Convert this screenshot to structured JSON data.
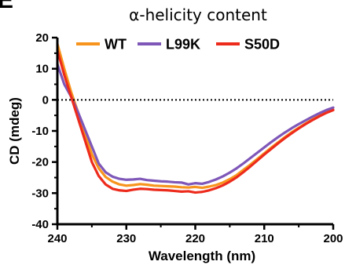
{
  "panel_letter": "E",
  "chart_data": {
    "type": "line",
    "title": "α-helicity content",
    "xlabel": "Wavelength (nm)",
    "ylabel": "CD (mdeg)",
    "xlim": [
      240,
      200
    ],
    "ylim": [
      -40,
      20
    ],
    "x_reversed": true,
    "xticks": [
      240,
      230,
      220,
      210,
      200
    ],
    "yticks": [
      -40,
      -30,
      -20,
      -10,
      0,
      10,
      20
    ],
    "reference_line": {
      "y": 0,
      "style": "dotted"
    },
    "legend_position": "top",
    "series": [
      {
        "name": "WT",
        "color": "#F7941D",
        "x": [
          240,
          239,
          238,
          237,
          236,
          235,
          234,
          233,
          232,
          231,
          230,
          229,
          228,
          227,
          226,
          225,
          224,
          223,
          222,
          221,
          220,
          219,
          218,
          217,
          216,
          215,
          214,
          213,
          212,
          211,
          210,
          209,
          208,
          207,
          206,
          205,
          204,
          203,
          202,
          201,
          200
        ],
        "values": [
          18,
          10,
          2.5,
          -4,
          -11,
          -17.5,
          -22,
          -24.8,
          -26.3,
          -27.2,
          -27.6,
          -27.4,
          -27.1,
          -27.3,
          -27.6,
          -27.7,
          -27.8,
          -27.9,
          -28.1,
          -28.2,
          -28.0,
          -28.3,
          -27.9,
          -27.4,
          -26.6,
          -25.5,
          -24.2,
          -22.5,
          -20.8,
          -19.0,
          -17.2,
          -15.4,
          -13.7,
          -12.0,
          -10.4,
          -9.0,
          -7.6,
          -6.3,
          -5.0,
          -4.0,
          -3.2
        ]
      },
      {
        "name": "L99K",
        "color": "#7E57B8",
        "x": [
          240,
          239,
          238,
          237,
          236,
          235,
          234,
          233,
          232,
          231,
          230,
          229,
          228,
          227,
          226,
          225,
          224,
          223,
          222,
          221,
          220,
          219,
          218,
          217,
          216,
          215,
          214,
          213,
          212,
          211,
          210,
          209,
          208,
          207,
          206,
          205,
          204,
          203,
          202,
          201,
          200
        ],
        "values": [
          11.5,
          5,
          1,
          -4,
          -9.5,
          -15,
          -20.5,
          -23.3,
          -24.7,
          -25.4,
          -25.7,
          -25.6,
          -25.4,
          -25.8,
          -26.0,
          -26.2,
          -26.3,
          -26.5,
          -26.6,
          -27.2,
          -26.8,
          -27.0,
          -26.4,
          -25.6,
          -24.6,
          -23.4,
          -22.0,
          -20.4,
          -18.7,
          -17.0,
          -15.3,
          -13.6,
          -12.0,
          -10.5,
          -9.1,
          -7.8,
          -6.6,
          -5.4,
          -4.3,
          -3.3,
          -2.5
        ]
      },
      {
        "name": "S50D",
        "color": "#ED2B1C",
        "x": [
          240,
          239,
          238,
          237,
          236,
          235,
          234,
          233,
          232,
          231,
          230,
          229,
          228,
          227,
          226,
          225,
          224,
          223,
          222,
          221,
          220,
          219,
          218,
          217,
          216,
          215,
          214,
          213,
          212,
          211,
          210,
          209,
          208,
          207,
          206,
          205,
          204,
          203,
          202,
          201,
          200
        ],
        "values": [
          16,
          8,
          1,
          -6,
          -13,
          -20,
          -24.5,
          -27.2,
          -28.6,
          -29.1,
          -29.3,
          -28.9,
          -28.6,
          -28.7,
          -28.9,
          -29.0,
          -29.1,
          -29.3,
          -29.5,
          -29.4,
          -29.8,
          -29.6,
          -29.1,
          -28.4,
          -27.5,
          -26.3,
          -24.9,
          -23.2,
          -21.4,
          -19.5,
          -17.6,
          -15.8,
          -14.0,
          -12.3,
          -10.7,
          -9.2,
          -7.8,
          -6.5,
          -5.3,
          -4.2,
          -3.3
        ]
      }
    ]
  }
}
